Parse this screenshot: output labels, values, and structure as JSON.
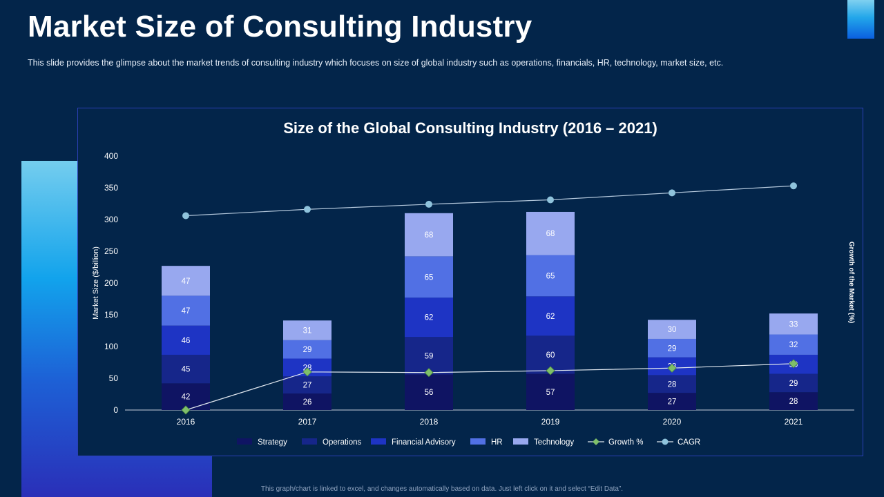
{
  "slide": {
    "title": "Market Size of Consulting Industry",
    "subtitle": "This slide provides  the glimpse about the market trends of consulting industry which focuses on size of global industry such as operations, financials, HR, technology, market size, etc.",
    "footnote": "This graph/chart is linked to excel, and changes automatically based on data. Just left click on it and select “Edit Data”."
  },
  "chart_data": {
    "type": "bar",
    "stacked": true,
    "title": "Size of the Global Consulting Industry (2016 – 2021)",
    "xlabel": "",
    "ylabel": "Market Size ($/billion)",
    "y2label": "Growth of the Market (%)",
    "categories": [
      "2016",
      "2017",
      "2018",
      "2019",
      "2020",
      "2021"
    ],
    "ylim": [
      0,
      400
    ],
    "yticks": [
      0,
      50,
      100,
      150,
      200,
      250,
      300,
      350,
      400
    ],
    "series": [
      {
        "name": "Strategy",
        "kind": "bar",
        "color": "#0f1463",
        "values": [
          42,
          26,
          56,
          57,
          27,
          28
        ]
      },
      {
        "name": "Operations",
        "kind": "bar",
        "color": "#16268a",
        "values": [
          45,
          27,
          59,
          60,
          28,
          29
        ]
      },
      {
        "name": "Financial Advisory",
        "kind": "bar",
        "color": "#1e34c4",
        "values": [
          46,
          28,
          62,
          62,
          28,
          30
        ]
      },
      {
        "name": "HR",
        "kind": "bar",
        "color": "#5170e4",
        "values": [
          47,
          29,
          65,
          65,
          29,
          32
        ]
      },
      {
        "name": "Technology",
        "kind": "bar",
        "color": "#98a8ef",
        "values": [
          47,
          31,
          68,
          68,
          30,
          33
        ]
      },
      {
        "name": "Growth %",
        "kind": "line",
        "marker": "diamond",
        "color": "#7fbf6a",
        "values": [
          0,
          60,
          59,
          62,
          66,
          73
        ]
      },
      {
        "name": "CAGR",
        "kind": "line",
        "marker": "circle",
        "color": "#8fc3dc",
        "values": [
          306,
          316,
          324,
          331,
          342,
          353
        ]
      }
    ],
    "legend_position": "bottom"
  }
}
